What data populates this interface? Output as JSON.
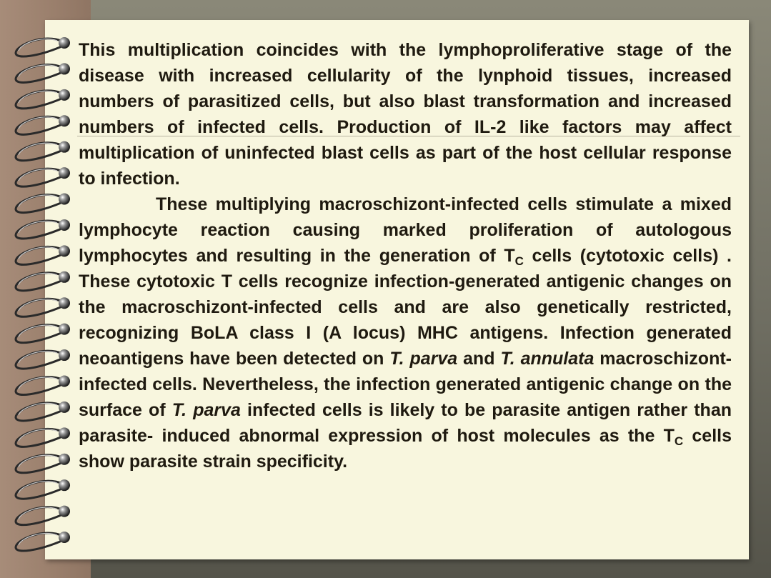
{
  "paragraph1": "This multiplication coincides with the lymphoproliferative stage of the disease with increased cellularity of the lynphoid tissues, increased numbers of parasitized cells, but also blast transformation and increased numbers of infected cells. Production of IL-2 like factors may affect multiplication of uninfected blast cells as part of the host cellular response to infection.",
  "paragraph2": {
    "s1": "These multiplying macroschizont-infected cells stimulate a mixed lymphocyte reaction causing marked proliferation of autologous lymphocytes and resulting in the generation of T",
    "sub1": "C",
    "s2": " cells (cytotoxic cells) . These cytotoxic T cells recognize infection-generated antigenic changes on the macroschizont-infected cells and are also genetically restricted, recognizing BoLA class I (A locus) MHC antigens. Infection generated neoantigens have been detected on ",
    "i1": "T. parva",
    "s3": " and ",
    "i2": "T. annulata",
    "s4": " macroschizont-infected cells. Nevertheless, the infection generated antigenic change on the surface of ",
    "i3": "T. parva",
    "s5": " infected cells is likely to be parasite antigen rather than parasite- induced abnormal expression of host molecules as the T",
    "sub2": "C",
    "s6": " cells show parasite strain specificity."
  },
  "colors": {
    "paper": "#f8f6de",
    "text": "#1f1a10",
    "left_strip": "#a78c79",
    "background": "#6f6e62"
  },
  "decorations": {
    "binding": "spiral-binding-icon",
    "ring_count": 20
  }
}
